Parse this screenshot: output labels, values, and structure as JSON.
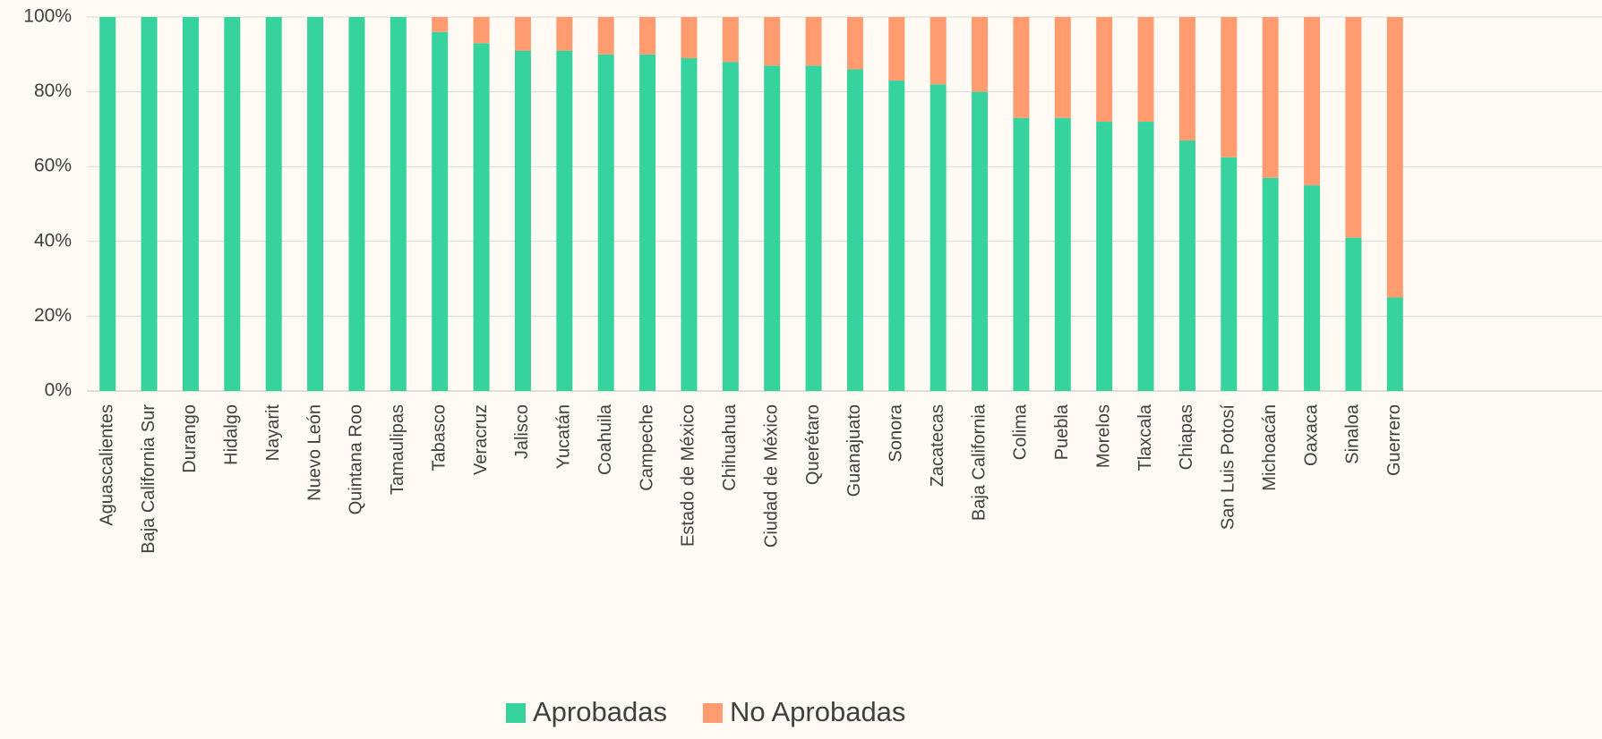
{
  "chart_data": {
    "type": "stacked_bar",
    "categories": [
      "Aguascalientes",
      "Baja California Sur",
      "Durango",
      "Hidalgo",
      "Nayarit",
      "Nuevo León",
      "Quintana Roo",
      "Tamaulipas",
      "Tabasco",
      "Veracruz",
      "Jalisco",
      "Yucatán",
      "Coahuila",
      "Campeche",
      "Estado de México",
      "Chihuahua",
      "Ciudad de México",
      "Querétaro",
      "Guanajuato",
      "Sonora",
      "Zacatecas",
      "Baja California",
      "Colima",
      "Puebla",
      "Morelos",
      "Tlaxcala",
      "Chiapas",
      "San Luis Potosí",
      "Michoacán",
      "Oaxaca",
      "Sinaloa",
      "Guerrero"
    ],
    "series": [
      {
        "name": "Aprobadas",
        "color": "#36d39f",
        "values": [
          100,
          100,
          100,
          100,
          100,
          100,
          100,
          100,
          96,
          93,
          91,
          91,
          90,
          90,
          89,
          88,
          87,
          87,
          86,
          83,
          82,
          80,
          73,
          73,
          72,
          72,
          67,
          62.5,
          57,
          55,
          41,
          25
        ]
      },
      {
        "name": "No Aprobadas",
        "color": "#ff9b6e",
        "values": [
          0,
          0,
          0,
          0,
          0,
          0,
          0,
          0,
          4,
          7,
          9,
          9,
          10,
          10,
          11,
          12,
          13,
          13,
          14,
          17,
          18,
          20,
          27,
          27,
          28,
          28,
          33,
          37.5,
          43,
          45,
          59,
          75
        ]
      }
    ],
    "ylim": [
      0,
      100
    ],
    "yticks": [
      {
        "value": 0,
        "label": "0%"
      },
      {
        "value": 20,
        "label": "20%"
      },
      {
        "value": 40,
        "label": "40%"
      },
      {
        "value": 60,
        "label": "60%"
      },
      {
        "value": 80,
        "label": "80%"
      },
      {
        "value": 100,
        "label": "100%"
      }
    ],
    "grid": true,
    "legend": "bottom"
  }
}
